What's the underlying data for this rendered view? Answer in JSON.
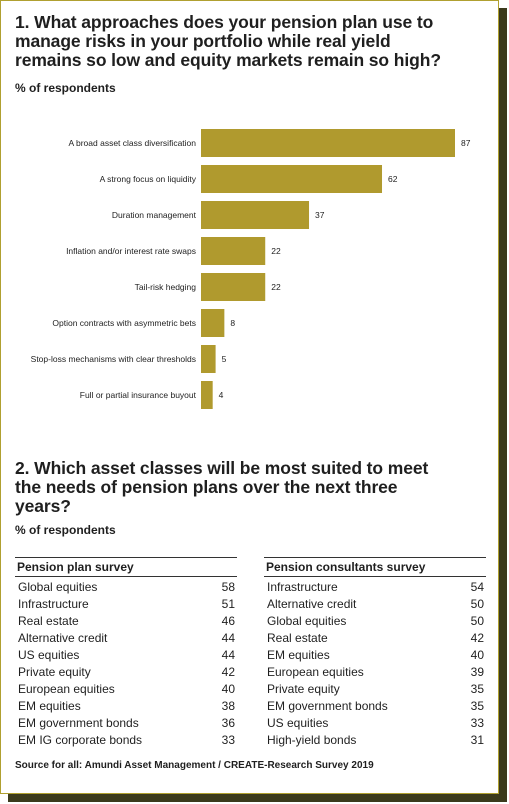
{
  "section1": {
    "title_line1": "1. What approaches does your pension plan use to",
    "title_line2": "manage risks in your portfolio while real yield",
    "title_line3": "remains so low and equity markets remain so high?",
    "subtitle": "% of respondents"
  },
  "chart_data": {
    "type": "bar",
    "orientation": "horizontal",
    "categories": [
      "A broad asset class diversification",
      "A strong focus on liquidity",
      "Duration management",
      "Inflation and/or interest rate swaps",
      "Tail-risk hedging",
      "Option contracts with asymmetric bets",
      "Stop-loss mechanisms with clear thresholds",
      "Full or partial insurance buyout"
    ],
    "values": [
      87,
      62,
      37,
      22,
      22,
      8,
      5,
      4
    ],
    "bar_color": "#b09a2e",
    "grid": false
  },
  "section2": {
    "title_line1": "2. Which asset classes will be most suited to meet",
    "title_line2": "the needs of pension plans over the next three",
    "title_line3": "years?",
    "subtitle": "% of respondents"
  },
  "tables": {
    "plan": {
      "heading": "Pension plan survey",
      "rows": [
        {
          "label": "Global equities",
          "value": "58"
        },
        {
          "label": "Infrastructure",
          "value": "51"
        },
        {
          "label": "Real estate",
          "value": "46"
        },
        {
          "label": "Alternative credit",
          "value": "44"
        },
        {
          "label": "US equities",
          "value": "44"
        },
        {
          "label": "Private equity",
          "value": "42"
        },
        {
          "label": "European equities",
          "value": "40"
        },
        {
          "label": "EM equities",
          "value": "38"
        },
        {
          "label": "EM government bonds",
          "value": "36"
        },
        {
          "label": "EM IG corporate bonds",
          "value": "33"
        }
      ]
    },
    "consultants": {
      "heading": "Pension consultants survey",
      "rows": [
        {
          "label": "Infrastructure",
          "value": "54"
        },
        {
          "label": "Alternative credit",
          "value": "50"
        },
        {
          "label": "Global equities",
          "value": "50"
        },
        {
          "label": "Real estate",
          "value": "42"
        },
        {
          "label": "EM equities",
          "value": "40"
        },
        {
          "label": "European equities",
          "value": "39"
        },
        {
          "label": "Private equity",
          "value": "35"
        },
        {
          "label": "EM government bonds",
          "value": "35"
        },
        {
          "label": "US equities",
          "value": "33"
        },
        {
          "label": "High-yield bonds",
          "value": "31"
        }
      ]
    }
  },
  "source": "Source for all: Amundi Asset Management / CREATE-Research Survey 2019",
  "colors": {
    "accent": "#b09a2e",
    "border": "#b0a030",
    "shadow": "#3b3a1c",
    "text": "#1f1f1f"
  }
}
